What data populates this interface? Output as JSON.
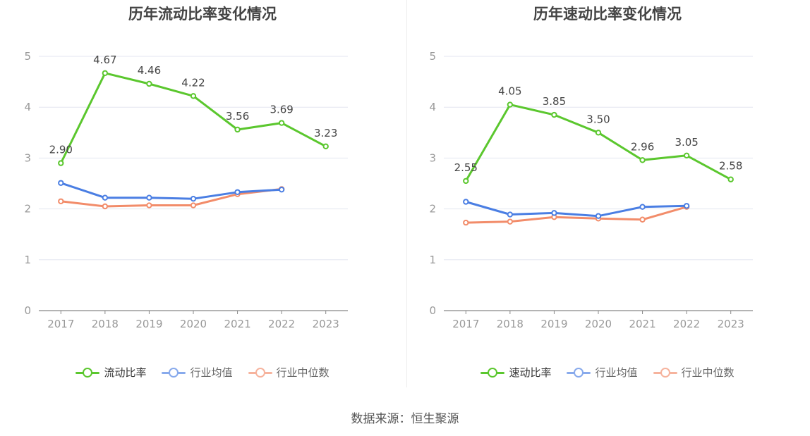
{
  "source_text": "数据来源：恒生聚源",
  "chart_data": [
    {
      "type": "line",
      "title": "历年流动比率变化情况",
      "x": [
        "2017",
        "2018",
        "2019",
        "2020",
        "2021",
        "2022",
        "2023"
      ],
      "ylim": [
        0,
        5
      ],
      "yticks": [
        "0",
        "1",
        "2",
        "3",
        "4",
        "5"
      ],
      "grid": true,
      "legend_position": "bottom",
      "series": [
        {
          "name": "流动比率",
          "color": "#5bc72e",
          "values": [
            2.9,
            4.67,
            4.46,
            4.22,
            3.56,
            3.69,
            3.23
          ],
          "labels": [
            "2.90",
            "4.67",
            "4.46",
            "4.22",
            "3.56",
            "3.69",
            "3.23"
          ]
        },
        {
          "name": "行业均值",
          "color": "#4a7ee3",
          "values": [
            2.51,
            2.22,
            2.22,
            2.2,
            2.33,
            2.38,
            null
          ]
        },
        {
          "name": "行业中位数",
          "color": "#f28c6a",
          "values": [
            2.15,
            2.05,
            2.07,
            2.07,
            2.29,
            2.39,
            null
          ]
        }
      ]
    },
    {
      "type": "line",
      "title": "历年速动比率变化情况",
      "x": [
        "2017",
        "2018",
        "2019",
        "2020",
        "2021",
        "2022",
        "2023"
      ],
      "ylim": [
        0,
        5
      ],
      "yticks": [
        "0",
        "1",
        "2",
        "3",
        "4",
        "5"
      ],
      "grid": true,
      "legend_position": "bottom",
      "series": [
        {
          "name": "速动比率",
          "color": "#5bc72e",
          "values": [
            2.55,
            4.05,
            3.85,
            3.5,
            2.96,
            3.05,
            2.58
          ],
          "labels": [
            "2.55",
            "4.05",
            "3.85",
            "3.50",
            "2.96",
            "3.05",
            "2.58"
          ]
        },
        {
          "name": "行业均值",
          "color": "#4a7ee3",
          "values": [
            2.14,
            1.89,
            1.92,
            1.86,
            2.04,
            2.06,
            null
          ]
        },
        {
          "name": "行业中位数",
          "color": "#f28c6a",
          "values": [
            1.73,
            1.75,
            1.84,
            1.81,
            1.79,
            2.04,
            null
          ]
        }
      ]
    }
  ]
}
